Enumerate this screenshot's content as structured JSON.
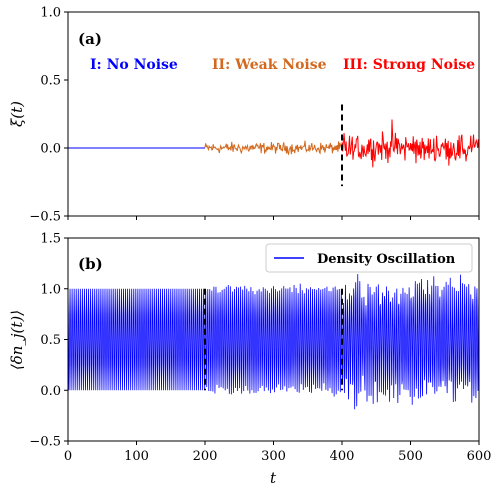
{
  "chart_data": [
    {
      "type": "line",
      "panel_label": "(a)",
      "ylabel": "ξ(t)",
      "xlim": [
        0,
        600
      ],
      "ylim": [
        -0.5,
        1.0
      ],
      "xticks": [
        0,
        100,
        200,
        300,
        400,
        500,
        600
      ],
      "xtick_labels": [
        "",
        "",
        "",
        "",
        "",
        "",
        ""
      ],
      "yticks": [
        -0.5,
        0.0,
        0.5,
        1.0
      ],
      "ytick_labels": [
        "−0.5",
        "0.0",
        "0.5",
        "1.0"
      ],
      "grid": false,
      "regions": [
        {
          "label": "I: No Noise",
          "x_range": [
            0,
            200
          ],
          "noise_amplitude": 0.0,
          "color": "#0000ff"
        },
        {
          "label": "II: Weak Noise",
          "x_range": [
            200,
            400
          ],
          "noise_amplitude": 0.05,
          "color": "#d2691e"
        },
        {
          "label": "III: Strong Noise",
          "x_range": [
            400,
            600
          ],
          "noise_amplitude": 0.15,
          "color": "#ff0000"
        }
      ],
      "vlines": [
        {
          "x": 400,
          "y_range": [
            -0.28,
            0.32
          ],
          "style": "dashed",
          "color": "#000000"
        }
      ],
      "series": [
        {
          "x_range": [
            0,
            200
          ],
          "mean": 0.0,
          "amplitude": 0.0,
          "color": "#0000ff"
        },
        {
          "x_range": [
            200,
            400
          ],
          "mean": 0.0,
          "amplitude": 0.06,
          "color": "#d2691e"
        },
        {
          "x_range": [
            400,
            600
          ],
          "mean": 0.0,
          "amplitude": 0.16,
          "color": "#ff0000"
        }
      ]
    },
    {
      "type": "line",
      "panel_label": "(b)",
      "ylabel": "⟨δn_j(t)⟩",
      "xlabel": "t",
      "xlim": [
        0,
        600
      ],
      "ylim": [
        -0.5,
        1.5
      ],
      "xticks": [
        0,
        100,
        200,
        300,
        400,
        500,
        600
      ],
      "xtick_labels": [
        "0",
        "100",
        "200",
        "300",
        "400",
        "500",
        "600"
      ],
      "yticks": [
        -0.5,
        0.0,
        0.5,
        1.0,
        1.5
      ],
      "ytick_labels": [
        "−0.5",
        "0.0",
        "0.5",
        "1.0",
        "1.5"
      ],
      "grid": false,
      "legend": {
        "position": "top-right",
        "entries": [
          "Density Oscillation"
        ]
      },
      "vlines": [
        {
          "x": 200,
          "y_range": [
            0.0,
            1.0
          ],
          "style": "dashed",
          "color": "#000000"
        },
        {
          "x": 400,
          "y_range": [
            0.0,
            1.0
          ],
          "style": "dashed",
          "color": "#000000"
        }
      ],
      "series": [
        {
          "name": "Density Oscillation",
          "color": "#0000ff",
          "mean": 0.5,
          "oscillation_amplitude": 0.5,
          "period": 3.0,
          "noise_by_region": [
            {
              "x_range": [
                0,
                200
              ],
              "extra_amplitude": 0.0
            },
            {
              "x_range": [
                200,
                400
              ],
              "extra_amplitude": 0.08
            },
            {
              "x_range": [
                400,
                600
              ],
              "extra_amplitude": 0.22
            }
          ]
        }
      ]
    }
  ]
}
